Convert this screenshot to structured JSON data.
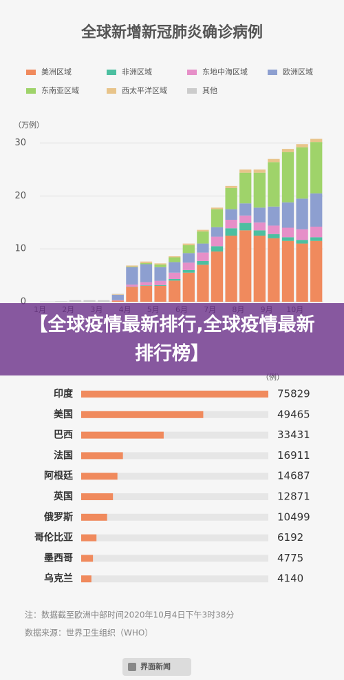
{
  "chart_data": [
    {
      "type": "stacked-bar",
      "title": "全球新增新冠肺炎确诊病例",
      "y_label": "（万例）",
      "categories": [
        "1月",
        null,
        "2月",
        null,
        "3月",
        null,
        "4月",
        null,
        "5月",
        null,
        "6月",
        null,
        "7月",
        null,
        "8月",
        null,
        "9月",
        null,
        "10月",
        null
      ],
      "ylim": [
        0,
        31
      ],
      "yticks": [
        0,
        10,
        20,
        30
      ],
      "series": [
        {
          "name": "美洲区域",
          "color": "#f08a5d",
          "values": [
            0,
            0,
            0,
            0,
            0,
            0.2,
            2.8,
            3.0,
            3.0,
            4.0,
            5.5,
            7.0,
            9.5,
            12.5,
            13.5,
            12.5,
            12.0,
            11.5,
            11.0,
            11.5
          ]
        },
        {
          "name": "非洲区域",
          "color": "#4cbfa0",
          "values": [
            0,
            0,
            0,
            0,
            0,
            0,
            0.05,
            0.1,
            0.15,
            0.3,
            0.5,
            0.7,
            1.0,
            1.4,
            1.4,
            1.0,
            0.8,
            0.7,
            0.7,
            0.7
          ]
        },
        {
          "name": "东地中海区域",
          "color": "#e68fc8",
          "values": [
            0,
            0,
            0,
            0,
            0,
            0.1,
            0.4,
            0.6,
            0.8,
            1.2,
            1.4,
            1.6,
            1.8,
            1.6,
            1.4,
            1.5,
            1.6,
            1.8,
            2.0,
            2.0
          ]
        },
        {
          "name": "欧洲区域",
          "color": "#8d9fd0",
          "values": [
            0,
            0,
            0,
            0,
            0,
            1.0,
            3.3,
            3.4,
            2.6,
            2.0,
            1.8,
            1.7,
            1.8,
            2.0,
            2.3,
            2.8,
            3.6,
            4.8,
            5.8,
            6.3
          ]
        },
        {
          "name": "东南亚区域",
          "color": "#9fd36a",
          "values": [
            0,
            0,
            0,
            0,
            0,
            0,
            0.1,
            0.2,
            0.5,
            0.9,
            1.5,
            2.3,
            3.4,
            4.0,
            5.8,
            6.6,
            8.4,
            9.5,
            9.7,
            9.7
          ]
        },
        {
          "name": "西太平洋区域",
          "color": "#e8c48a",
          "values": [
            0,
            0,
            0,
            0,
            0,
            0.1,
            0.2,
            0.3,
            0.2,
            0.2,
            0.3,
            0.3,
            0.3,
            0.4,
            0.6,
            0.6,
            0.6,
            0.6,
            0.6,
            0.6
          ]
        },
        {
          "name": "其他",
          "color": "#cccccc",
          "values": [
            0,
            0.1,
            0.3,
            0.3,
            0.3,
            0.1,
            0,
            0,
            0,
            0,
            0,
            0,
            0,
            0,
            0,
            0,
            0,
            0,
            0,
            0
          ]
        }
      ]
    },
    {
      "type": "hbar",
      "y_label": "（例）",
      "color": "#f08a5d",
      "categories": [
        "印度",
        "美国",
        "巴西",
        "法国",
        "阿根廷",
        "英国",
        "俄罗斯",
        "哥伦比亚",
        "墨西哥",
        "乌克兰"
      ],
      "values": [
        75829,
        49465,
        33431,
        16911,
        14687,
        12871,
        10499,
        6192,
        4775,
        4140
      ]
    }
  ],
  "banner": "【全球疫情最新排行,全球疫情最新排行榜】",
  "notes": [
    "注：数据截至欧洲中部时间2020年10月4日下午3时38分",
    "数据来源：世界卫生组织（WHO）"
  ],
  "footer": "界面新闻"
}
